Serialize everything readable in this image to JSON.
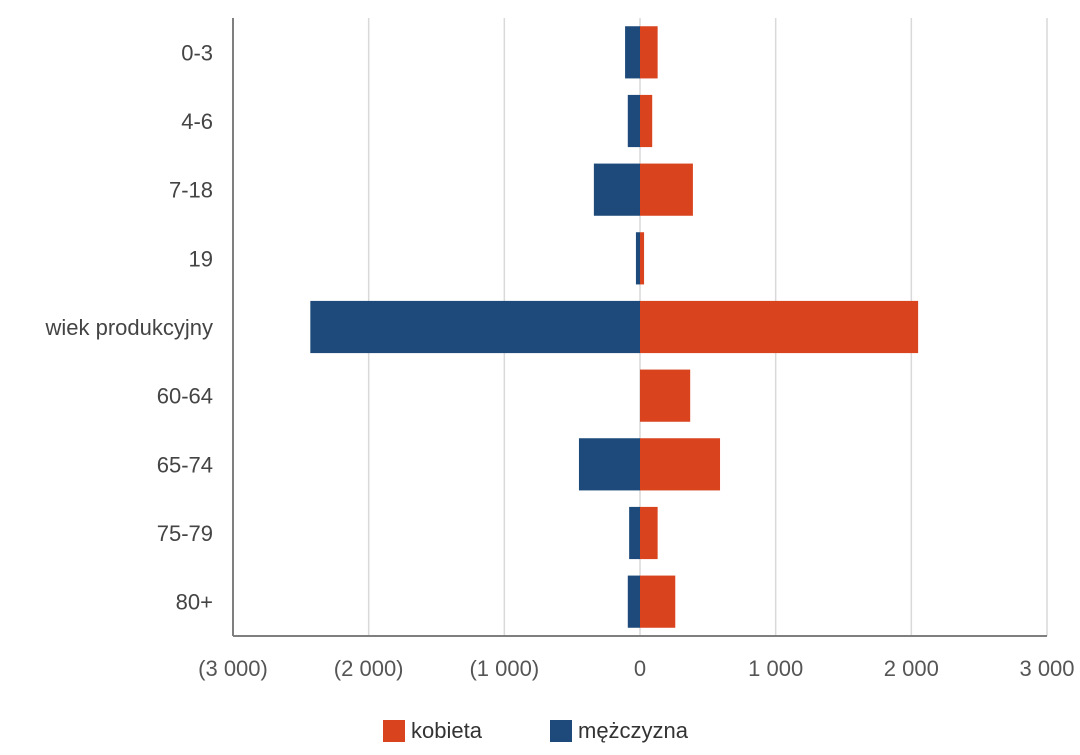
{
  "colors": {
    "kobieta": "#d9431e",
    "mezczyzna": "#1d4a7a",
    "grid": "#d9d9d9",
    "axis": "#7f7f7f"
  },
  "chart_data": {
    "type": "bar",
    "orientation": "horizontal",
    "categories": [
      "0-3",
      "4-6",
      "7-18",
      "19",
      "wiek produkcyjny",
      "60-64",
      "65-74",
      "75-79",
      "80+"
    ],
    "series": [
      {
        "name": "kobieta",
        "values": [
          130,
          90,
          390,
          30,
          2050,
          370,
          590,
          130,
          260
        ]
      },
      {
        "name": "mężczyzna",
        "values": [
          -110,
          -90,
          -340,
          -30,
          -2430,
          0,
          -450,
          -80,
          -90
        ]
      }
    ],
    "xlim": [
      -3000,
      3000
    ],
    "xticks": [
      -3000,
      -2000,
      -1000,
      0,
      1000,
      2000,
      3000
    ],
    "xtick_labels": [
      "(3 000)",
      "(2 000)",
      "(1 000)",
      "0",
      "1 000",
      "2 000",
      "3 000"
    ],
    "grid": true,
    "legend_position": "bottom"
  },
  "legend": {
    "kobieta": "kobieta",
    "mezczyzna": "mężczyzna"
  }
}
